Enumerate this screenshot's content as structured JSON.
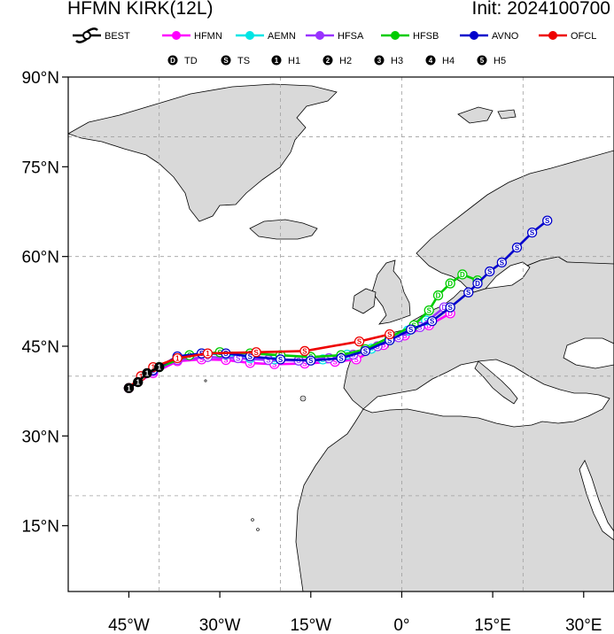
{
  "header": {
    "storm_title": "HFMN KIRK(12L)",
    "init_label": "Init: 2024100700"
  },
  "legend": {
    "models": [
      {
        "name": "BEST",
        "color": "#000000",
        "icon": "hurricane-symbol-icon"
      },
      {
        "name": "HFMN",
        "color": "#ff00ff"
      },
      {
        "name": "AEMN",
        "color": "#00e5e5"
      },
      {
        "name": "HFSA",
        "color": "#9933ff"
      },
      {
        "name": "HFSB",
        "color": "#00cc00"
      },
      {
        "name": "AVNO",
        "color": "#0000cc"
      },
      {
        "name": "OFCL",
        "color": "#ee0000"
      }
    ],
    "intensity": [
      {
        "symbol": "D",
        "label": "TD"
      },
      {
        "symbol": "S",
        "label": "TS"
      },
      {
        "symbol": "1",
        "label": "H1"
      },
      {
        "symbol": "2",
        "label": "H2"
      },
      {
        "symbol": "3",
        "label": "H3"
      },
      {
        "symbol": "4",
        "label": "H4"
      },
      {
        "symbol": "5",
        "label": "H5"
      }
    ]
  },
  "axes": {
    "lat_labels": [
      "90°N",
      "75°N",
      "60°N",
      "45°N",
      "30°N",
      "15°N"
    ],
    "lon_labels": [
      "45°W",
      "30°W",
      "15°W",
      "0°",
      "15°E",
      "30°E"
    ]
  },
  "map_extent": {
    "lon_min": -55,
    "lon_max": 35,
    "lat_min": 4,
    "lat_max": 90
  },
  "tracks": [
    {
      "model": "BEST",
      "color": "#000000",
      "points": [
        [
          -45,
          38
        ],
        [
          -43.5,
          39
        ],
        [
          -42,
          40.5
        ],
        [
          -40,
          41.5
        ]
      ],
      "symbols": [
        "1",
        "1",
        "1",
        "1"
      ]
    },
    {
      "model": "HFMN",
      "color": "#ff00ff",
      "points": [
        [
          -45,
          38
        ],
        [
          -41,
          40.5
        ],
        [
          -37,
          42.5
        ],
        [
          -33,
          42.8
        ],
        [
          -29,
          42.7
        ],
        [
          -25,
          42.2
        ],
        [
          -21,
          42
        ],
        [
          -16,
          42.1
        ],
        [
          -11,
          42.4
        ],
        [
          -7.5,
          42.8
        ],
        [
          -3,
          45.2
        ],
        [
          0.5,
          46.8
        ],
        [
          4.5,
          48.5
        ],
        [
          8,
          50.5
        ]
      ],
      "symbols": [
        "S",
        "S",
        "S",
        "S",
        "S",
        "S",
        "S",
        "S",
        "S",
        "S",
        "S",
        "S",
        "D",
        "D"
      ]
    },
    {
      "model": "AEMN",
      "color": "#00e5e5",
      "points": [
        [
          -45,
          38
        ],
        [
          -41,
          41
        ],
        [
          -37,
          43.2
        ],
        [
          -33,
          43.8
        ],
        [
          -29,
          43.6
        ],
        [
          -25,
          43
        ],
        [
          -21,
          42.8
        ],
        [
          -17,
          42.6
        ],
        [
          -13,
          42.8
        ],
        [
          -9,
          43.6
        ],
        [
          -5,
          44.6
        ],
        [
          -2,
          46
        ],
        [
          1,
          47.6
        ],
        [
          4,
          49.3
        ]
      ],
      "symbols": [
        "S",
        "S",
        "S",
        "S",
        "S",
        "S",
        "S",
        "S",
        "S",
        "S",
        "S",
        "S",
        "S",
        "S"
      ]
    },
    {
      "model": "HFSA",
      "color": "#9933ff",
      "points": [
        [
          -45,
          38
        ],
        [
          -41,
          40.8
        ],
        [
          -37,
          42.7
        ],
        [
          -32,
          43.2
        ],
        [
          -27,
          43
        ],
        [
          -22,
          42.7
        ],
        [
          -17,
          42.6
        ],
        [
          -12,
          43
        ],
        [
          -8,
          43.6
        ],
        [
          -4,
          45
        ],
        [
          -0.5,
          46.5
        ],
        [
          3,
          48.2
        ],
        [
          7,
          51.5
        ]
      ],
      "symbols": [
        "S",
        "S",
        "S",
        "S",
        "S",
        "S",
        "S",
        "S",
        "S",
        "S",
        "S",
        "S",
        "D"
      ]
    },
    {
      "model": "HFSB",
      "color": "#00cc00",
      "points": [
        [
          -45,
          38
        ],
        [
          -40,
          41.5
        ],
        [
          -35,
          43.5
        ],
        [
          -30,
          44
        ],
        [
          -25,
          43.8
        ],
        [
          -20,
          43.5
        ],
        [
          -15,
          43.2
        ],
        [
          -10,
          43.5
        ],
        [
          -6,
          44.5
        ],
        [
          -2,
          46.5
        ],
        [
          2,
          48.5
        ],
        [
          4.5,
          51
        ],
        [
          6,
          53.5
        ],
        [
          8,
          55.5
        ],
        [
          10,
          57
        ],
        [
          12.5,
          56
        ]
      ],
      "symbols": [
        "S",
        "S",
        "S",
        "S",
        "S",
        "S",
        "S",
        "S",
        "S",
        "S",
        "S",
        "S",
        "D",
        "D",
        "D",
        "D"
      ]
    },
    {
      "model": "AVNO",
      "color": "#0000cc",
      "points": [
        [
          -45,
          38
        ],
        [
          -41,
          41
        ],
        [
          -37,
          43.3
        ],
        [
          -33,
          43.8
        ],
        [
          -29,
          43.8
        ],
        [
          -25,
          43.3
        ],
        [
          -20,
          42.8
        ],
        [
          -15,
          42.6
        ],
        [
          -10,
          43
        ],
        [
          -6,
          44.2
        ],
        [
          -2,
          46
        ],
        [
          1.5,
          47.8
        ],
        [
          5,
          49.2
        ],
        [
          8,
          51.5
        ],
        [
          11,
          54
        ],
        [
          12.5,
          55.5
        ],
        [
          14.5,
          57.5
        ],
        [
          16.5,
          59
        ],
        [
          19,
          61.5
        ],
        [
          21.5,
          64
        ],
        [
          24,
          66
        ]
      ],
      "symbols": [
        "S",
        "S",
        "S",
        "S",
        "S",
        "S",
        "S",
        "S",
        "S",
        "S",
        "S",
        "S",
        "S",
        "S",
        "S",
        "D",
        "S",
        "S",
        "S",
        "S",
        "S"
      ]
    },
    {
      "model": "OFCL",
      "color": "#ee0000",
      "points": [
        [
          -45,
          38
        ],
        [
          -43,
          40
        ],
        [
          -41,
          41.5
        ],
        [
          -37,
          43
        ],
        [
          -32,
          43.8
        ],
        [
          -24,
          44
        ],
        [
          -16,
          44.2
        ],
        [
          -7,
          45.8
        ],
        [
          -2,
          47
        ]
      ],
      "symbols": [
        "1",
        "1",
        "1",
        "1",
        "1",
        "S",
        "S",
        "S",
        "S"
      ]
    }
  ]
}
